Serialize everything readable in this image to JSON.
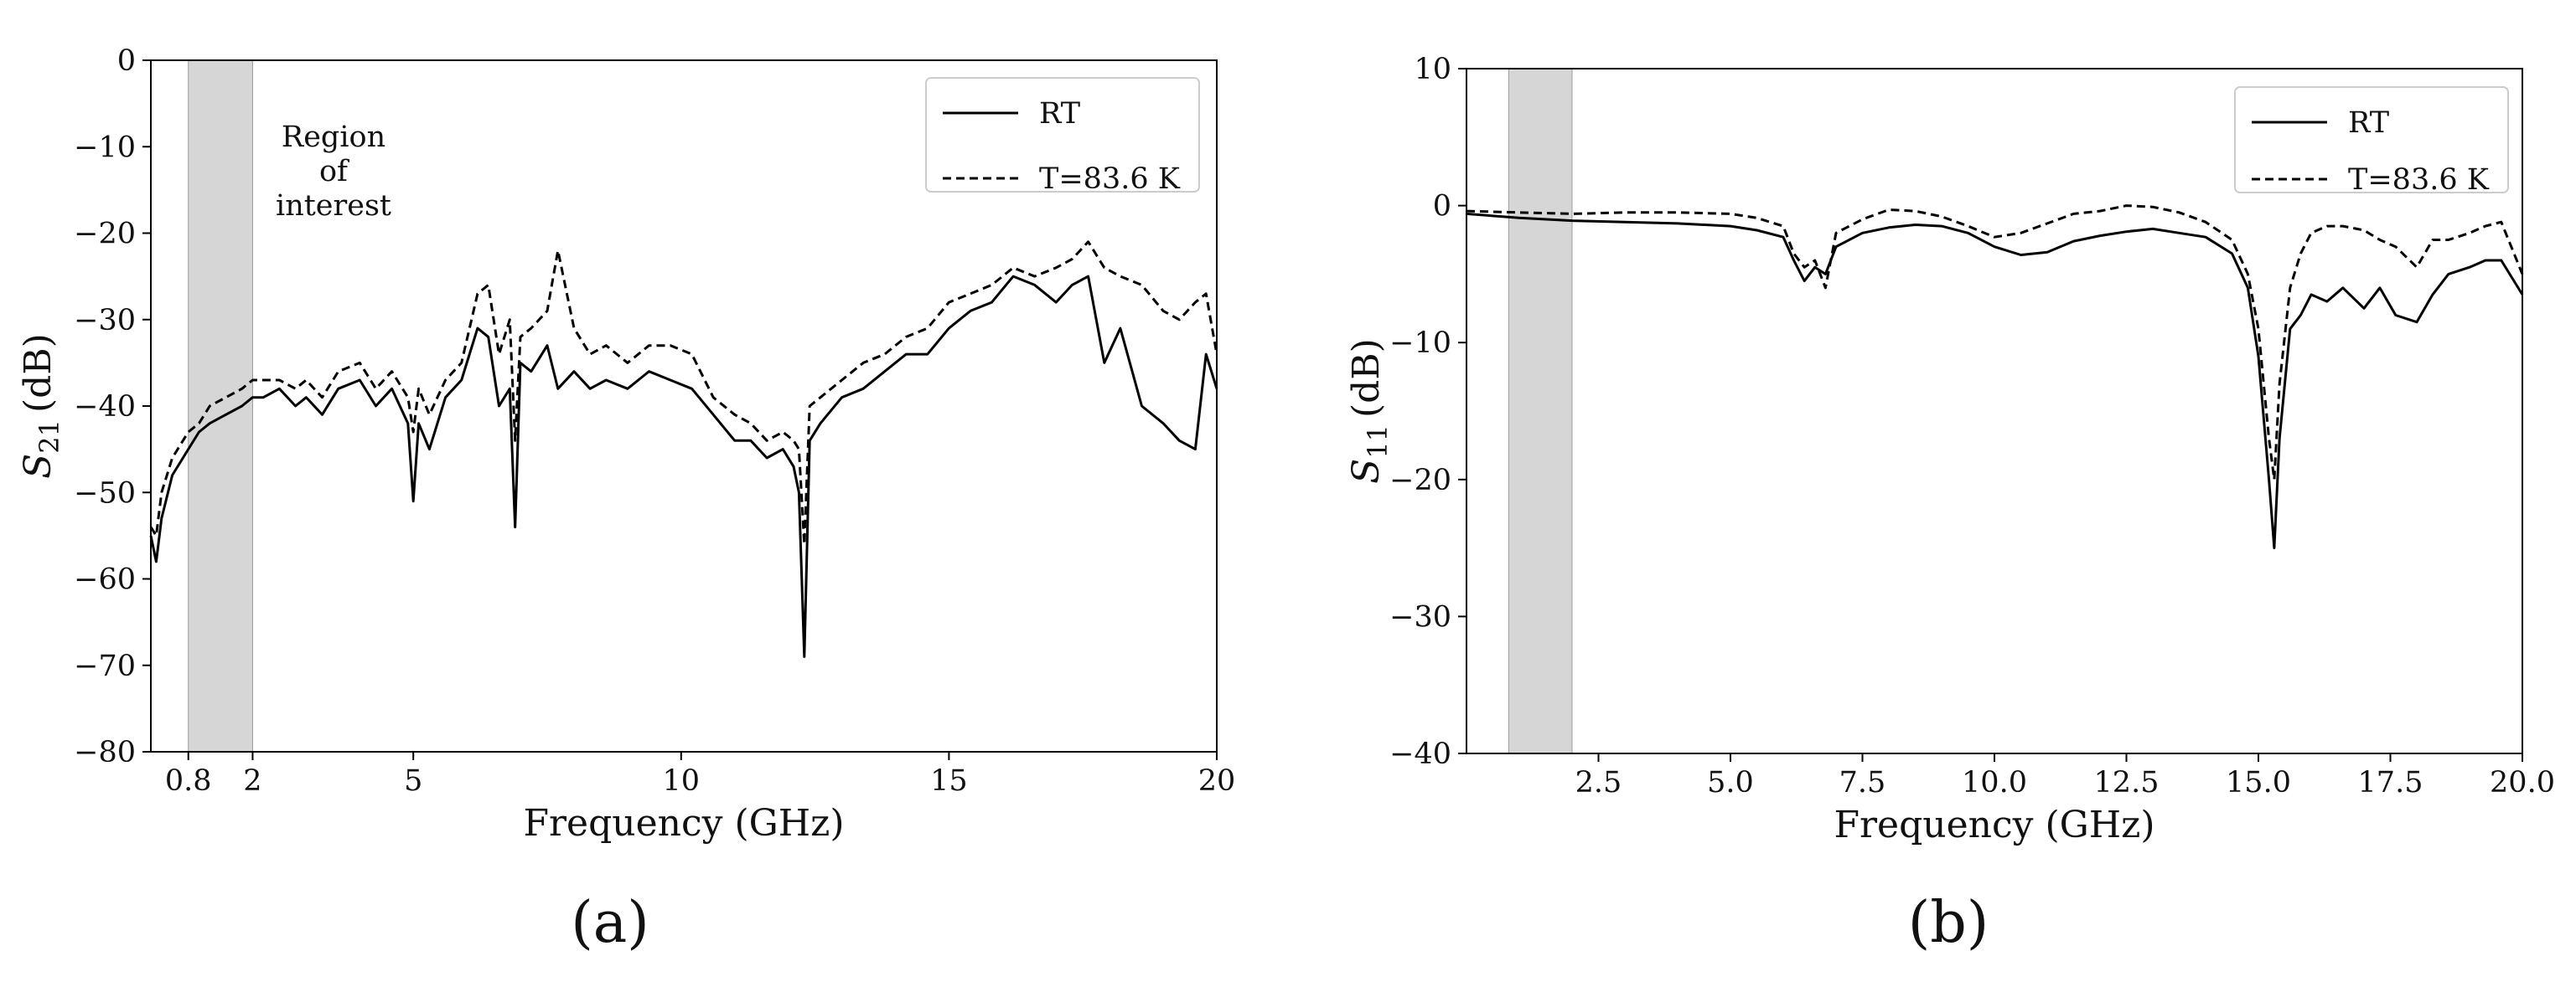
{
  "chart_data": [
    {
      "panel": "(a)",
      "type": "line",
      "xlabel": "Frequency (GHz)",
      "ylabel_main": "S",
      "ylabel_sub": "21",
      "ylabel_unit": "(dB)",
      "xlim": [
        0.1,
        20
      ],
      "ylim": [
        -80,
        0
      ],
      "xticks": [
        0.8,
        2,
        5,
        10,
        15,
        20
      ],
      "xtick_labels": [
        "0.8",
        "2",
        "5",
        "10",
        "15",
        "20"
      ],
      "yticks": [
        0,
        -10,
        -20,
        -30,
        -40,
        -50,
        -60,
        -70,
        -80
      ],
      "ytick_labels": [
        "0",
        "−10",
        "−20",
        "−30",
        "−40",
        "−50",
        "−60",
        "−70",
        "−80"
      ],
      "shaded_band": [
        0.8,
        2
      ],
      "annotation": [
        "Region",
        "of",
        "interest"
      ],
      "legend_position": "top-right",
      "grid": false,
      "series": [
        {
          "name": "RT",
          "style": "solid",
          "x": [
            0.1,
            0.2,
            0.3,
            0.5,
            0.8,
            1.0,
            1.2,
            1.5,
            1.8,
            2.0,
            2.2,
            2.5,
            2.8,
            3.0,
            3.3,
            3.6,
            4.0,
            4.3,
            4.6,
            4.9,
            5.0,
            5.1,
            5.3,
            5.6,
            5.9,
            6.2,
            6.4,
            6.6,
            6.8,
            6.9,
            7.0,
            7.2,
            7.5,
            7.7,
            8.0,
            8.3,
            8.6,
            9.0,
            9.4,
            9.8,
            10.2,
            10.6,
            11.0,
            11.3,
            11.6,
            11.9,
            12.1,
            12.2,
            12.3,
            12.4,
            12.6,
            13.0,
            13.4,
            13.8,
            14.2,
            14.6,
            15.0,
            15.4,
            15.8,
            16.2,
            16.6,
            17.0,
            17.3,
            17.6,
            17.9,
            18.2,
            18.6,
            19.0,
            19.3,
            19.6,
            19.8,
            20.0
          ],
          "y": [
            -55,
            -58,
            -53,
            -48,
            -45,
            -43,
            -42,
            -41,
            -40,
            -39,
            -39,
            -38,
            -40,
            -39,
            -41,
            -38,
            -37,
            -40,
            -38,
            -42,
            -51,
            -42,
            -45,
            -39,
            -37,
            -31,
            -32,
            -40,
            -38,
            -54,
            -35,
            -36,
            -33,
            -38,
            -36,
            -38,
            -37,
            -38,
            -36,
            -37,
            -38,
            -41,
            -44,
            -44,
            -46,
            -45,
            -47,
            -50,
            -69,
            -44,
            -42,
            -39,
            -38,
            -36,
            -34,
            -34,
            -31,
            -29,
            -28,
            -25,
            -26,
            -28,
            -26,
            -25,
            -35,
            -31,
            -40,
            -42,
            -44,
            -45,
            -34,
            -38
          ]
        },
        {
          "name": "T=83.6 K",
          "style": "dashed",
          "x": [
            0.1,
            0.2,
            0.3,
            0.5,
            0.8,
            1.0,
            1.2,
            1.5,
            1.8,
            2.0,
            2.2,
            2.5,
            2.8,
            3.0,
            3.3,
            3.6,
            4.0,
            4.3,
            4.6,
            4.9,
            5.0,
            5.1,
            5.3,
            5.6,
            5.9,
            6.2,
            6.4,
            6.6,
            6.8,
            6.9,
            7.0,
            7.2,
            7.5,
            7.7,
            8.0,
            8.3,
            8.6,
            9.0,
            9.4,
            9.8,
            10.2,
            10.6,
            11.0,
            11.3,
            11.6,
            11.9,
            12.1,
            12.2,
            12.3,
            12.4,
            12.6,
            13.0,
            13.4,
            13.8,
            14.2,
            14.6,
            15.0,
            15.4,
            15.8,
            16.2,
            16.6,
            17.0,
            17.3,
            17.6,
            17.9,
            18.2,
            18.6,
            19.0,
            19.3,
            19.6,
            19.8,
            20.0
          ],
          "y": [
            -54,
            -55,
            -50,
            -46,
            -43,
            -42,
            -40,
            -39,
            -38,
            -37,
            -37,
            -37,
            -38,
            -37,
            -39,
            -36,
            -35,
            -38,
            -36,
            -39,
            -43,
            -38,
            -41,
            -37,
            -35,
            -27,
            -26,
            -34,
            -30,
            -44,
            -32,
            -31,
            -29,
            -22,
            -31,
            -34,
            -33,
            -35,
            -33,
            -33,
            -34,
            -39,
            -41,
            -42,
            -44,
            -43,
            -44,
            -45,
            -56,
            -40,
            -39,
            -37,
            -35,
            -34,
            -32,
            -31,
            -28,
            -27,
            -26,
            -24,
            -25,
            -24,
            -23,
            -21,
            -24,
            -25,
            -26,
            -29,
            -30,
            -28,
            -27,
            -34
          ]
        }
      ]
    },
    {
      "panel": "(b)",
      "type": "line",
      "xlabel": "Frequency (GHz)",
      "ylabel_main": "S",
      "ylabel_sub": "11",
      "ylabel_unit": "(dB)",
      "xlim": [
        0,
        20
      ],
      "ylim": [
        -40,
        10
      ],
      "xticks": [
        2.5,
        5.0,
        7.5,
        10.0,
        12.5,
        15.0,
        17.5,
        20.0
      ],
      "xtick_labels": [
        "2.5",
        "5.0",
        "7.5",
        "10.0",
        "12.5",
        "15.0",
        "17.5",
        "20.0"
      ],
      "yticks": [
        10,
        0,
        -10,
        -20,
        -30,
        -40
      ],
      "ytick_labels": [
        "10",
        "0",
        "−10",
        "−20",
        "−30",
        "−40"
      ],
      "shaded_band": [
        0.8,
        2
      ],
      "legend_position": "top-right",
      "grid": false,
      "series": [
        {
          "name": "RT",
          "style": "solid",
          "x": [
            0.0,
            1.0,
            2.0,
            3.0,
            4.0,
            5.0,
            5.5,
            6.0,
            6.2,
            6.4,
            6.6,
            6.8,
            7.0,
            7.5,
            8.0,
            8.5,
            9.0,
            9.5,
            10.0,
            10.5,
            11.0,
            11.5,
            12.0,
            12.5,
            13.0,
            13.5,
            14.0,
            14.5,
            14.8,
            15.0,
            15.2,
            15.3,
            15.4,
            15.6,
            15.8,
            16.0,
            16.3,
            16.6,
            17.0,
            17.3,
            17.6,
            18.0,
            18.3,
            18.6,
            19.0,
            19.3,
            19.6,
            20.0
          ],
          "y": [
            -0.6,
            -0.9,
            -1.1,
            -1.2,
            -1.3,
            -1.5,
            -1.8,
            -2.3,
            -4.0,
            -5.5,
            -4.5,
            -5.0,
            -3.0,
            -2.0,
            -1.6,
            -1.4,
            -1.5,
            -2.0,
            -3.0,
            -3.6,
            -3.4,
            -2.6,
            -2.2,
            -1.9,
            -1.7,
            -2.0,
            -2.3,
            -3.5,
            -6.0,
            -11.0,
            -20.0,
            -25.0,
            -17.0,
            -9.0,
            -8.0,
            -6.5,
            -7.0,
            -6.0,
            -7.5,
            -6.0,
            -8.0,
            -8.5,
            -6.5,
            -5.0,
            -4.5,
            -4.0,
            -4.0,
            -6.5
          ]
        },
        {
          "name": "T=83.6 K",
          "style": "dashed",
          "x": [
            0.0,
            1.0,
            2.0,
            3.0,
            4.0,
            5.0,
            5.5,
            6.0,
            6.2,
            6.4,
            6.6,
            6.8,
            7.0,
            7.5,
            8.0,
            8.5,
            9.0,
            9.5,
            10.0,
            10.5,
            11.0,
            11.5,
            12.0,
            12.5,
            13.0,
            13.5,
            14.0,
            14.5,
            14.8,
            15.0,
            15.2,
            15.3,
            15.4,
            15.6,
            15.8,
            16.0,
            16.3,
            16.6,
            17.0,
            17.3,
            17.6,
            18.0,
            18.3,
            18.6,
            19.0,
            19.3,
            19.6,
            20.0
          ],
          "y": [
            -0.4,
            -0.5,
            -0.6,
            -0.5,
            -0.5,
            -0.6,
            -0.9,
            -1.5,
            -3.5,
            -4.5,
            -4.0,
            -6.0,
            -2.0,
            -1.0,
            -0.3,
            -0.4,
            -0.8,
            -1.5,
            -2.3,
            -2.0,
            -1.3,
            -0.6,
            -0.4,
            0.0,
            -0.1,
            -0.5,
            -1.2,
            -2.5,
            -5.0,
            -9.0,
            -17.0,
            -20.0,
            -13.0,
            -6.0,
            -3.5,
            -2.0,
            -1.5,
            -1.5,
            -1.8,
            -2.5,
            -3.0,
            -4.5,
            -2.5,
            -2.5,
            -2.0,
            -1.5,
            -1.2,
            -5.0
          ]
        }
      ]
    }
  ]
}
